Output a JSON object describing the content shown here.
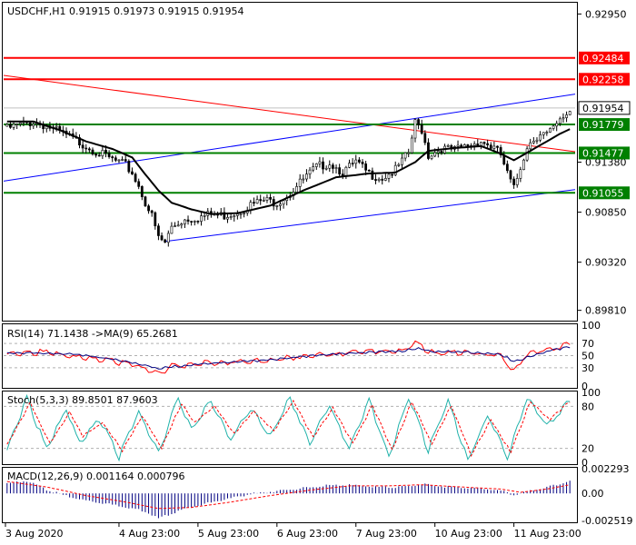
{
  "colors": {
    "background": "#ffffff",
    "frame": "#000000",
    "bull_candle": "#ffffff",
    "bear_candle": "#000000",
    "moving_average": "#000000",
    "channel_lines": "#0000ff",
    "trend_line": "#ff0000",
    "support_lines": "#008000",
    "resistance_lines": "#ff0000",
    "rsi_line": "#ff0000",
    "rsi_ma_line": "#000080",
    "stoch_main": "#20b2aa",
    "stoch_signal": "#ff0000",
    "macd_hist": "#000080",
    "macd_signal": "#ff0000",
    "level_tag_red_bg": "#ff0000",
    "level_tag_green_bg": "#008000"
  },
  "chart_data": [
    {
      "type": "candlestick",
      "title": "USDCHF,H1  0.91915  0.91973  0.91915  0.91954",
      "ylim": [
        0.8972,
        0.9305
      ],
      "y_ticks": [
        "0.92950",
        "0.91380",
        "0.90850",
        "0.90320",
        "0.89810"
      ],
      "y_tick_values": [
        0.9295,
        0.9138,
        0.9085,
        0.9032,
        0.8981
      ],
      "current_price": "0.91954",
      "current_price_value": 0.91954,
      "horizontal_levels": [
        {
          "label": "0.92484",
          "value": 0.92484,
          "color": "red"
        },
        {
          "label": "0.92258",
          "value": 0.92258,
          "color": "red"
        },
        {
          "label": "0.91779",
          "value": 0.91779,
          "color": "green"
        },
        {
          "label": "0.91477",
          "value": 0.91477,
          "color": "green"
        },
        {
          "label": "0.91055",
          "value": 0.91055,
          "color": "green"
        }
      ],
      "close_path": [
        [
          0,
          0.9176
        ],
        [
          4,
          0.918
        ],
        [
          8,
          0.9183
        ],
        [
          12,
          0.9179
        ],
        [
          16,
          0.9172
        ],
        [
          20,
          0.9165
        ],
        [
          24,
          0.9158
        ],
        [
          28,
          0.915
        ],
        [
          32,
          0.9143
        ],
        [
          36,
          0.9137
        ],
        [
          38,
          0.9129
        ],
        [
          40,
          0.9115
        ],
        [
          42,
          0.9098
        ],
        [
          44,
          0.9083
        ],
        [
          46,
          0.906
        ],
        [
          48,
          0.9055
        ],
        [
          50,
          0.9072
        ],
        [
          54,
          0.908
        ],
        [
          58,
          0.9082
        ],
        [
          62,
          0.9085
        ],
        [
          66,
          0.9084
        ],
        [
          70,
          0.9088
        ],
        [
          74,
          0.9095
        ],
        [
          78,
          0.91
        ],
        [
          82,
          0.9098
        ],
        [
          86,
          0.9108
        ],
        [
          90,
          0.9122
        ],
        [
          94,
          0.9135
        ],
        [
          98,
          0.914
        ],
        [
          102,
          0.913
        ],
        [
          106,
          0.914
        ],
        [
          110,
          0.9128
        ],
        [
          114,
          0.9124
        ],
        [
          118,
          0.9132
        ],
        [
          122,
          0.915
        ],
        [
          124,
          0.9182
        ],
        [
          126,
          0.9175
        ],
        [
          128,
          0.9148
        ],
        [
          132,
          0.9155
        ],
        [
          136,
          0.9153
        ],
        [
          140,
          0.9158
        ],
        [
          144,
          0.9163
        ],
        [
          148,
          0.9155
        ],
        [
          150,
          0.9148
        ],
        [
          152,
          0.9128
        ],
        [
          154,
          0.9112
        ],
        [
          156,
          0.9135
        ],
        [
          158,
          0.9158
        ],
        [
          160,
          0.9165
        ],
        [
          162,
          0.9172
        ],
        [
          164,
          0.917
        ],
        [
          166,
          0.9175
        ],
        [
          168,
          0.9183
        ],
        [
          170,
          0.9192
        ],
        [
          171,
          0.9195
        ]
      ],
      "moving_average_path": [
        [
          0,
          0.9181
        ],
        [
          8,
          0.9181
        ],
        [
          16,
          0.9172
        ],
        [
          24,
          0.916
        ],
        [
          32,
          0.9152
        ],
        [
          38,
          0.9143
        ],
        [
          42,
          0.9125
        ],
        [
          46,
          0.9108
        ],
        [
          50,
          0.9095
        ],
        [
          56,
          0.9088
        ],
        [
          62,
          0.9083
        ],
        [
          70,
          0.9084
        ],
        [
          80,
          0.9092
        ],
        [
          90,
          0.9108
        ],
        [
          100,
          0.9122
        ],
        [
          110,
          0.9126
        ],
        [
          118,
          0.9127
        ],
        [
          124,
          0.9138
        ],
        [
          128,
          0.915
        ],
        [
          136,
          0.9153
        ],
        [
          144,
          0.9155
        ],
        [
          150,
          0.9147
        ],
        [
          154,
          0.914
        ],
        [
          158,
          0.9148
        ],
        [
          164,
          0.916
        ],
        [
          168,
          0.9168
        ],
        [
          171,
          0.9173
        ]
      ]
    },
    {
      "type": "line",
      "title": "RSI(14) 71.1438  ->MA(9) 65.2681",
      "ylim": [
        0,
        100
      ],
      "y_ticks": [
        "100",
        "70",
        "50",
        "30",
        "0"
      ],
      "y_tick_values": [
        100,
        70,
        50,
        30,
        0
      ],
      "series": [
        {
          "name": "RSI(14)",
          "points": [
            [
              0,
              55
            ],
            [
              10,
              58
            ],
            [
              20,
              52
            ],
            [
              30,
              45
            ],
            [
              40,
              35
            ],
            [
              46,
              22
            ],
            [
              50,
              35
            ],
            [
              60,
              40
            ],
            [
              70,
              42
            ],
            [
              80,
              45
            ],
            [
              90,
              52
            ],
            [
              100,
              55
            ],
            [
              110,
              58
            ],
            [
              120,
              60
            ],
            [
              124,
              72
            ],
            [
              130,
              55
            ],
            [
              140,
              58
            ],
            [
              150,
              52
            ],
            [
              154,
              28
            ],
            [
              158,
              55
            ],
            [
              164,
              62
            ],
            [
              171,
              71
            ]
          ]
        },
        {
          "name": "MA(9)",
          "points": [
            [
              0,
              54
            ],
            [
              10,
              55
            ],
            [
              20,
              53
            ],
            [
              30,
              47
            ],
            [
              40,
              38
            ],
            [
              46,
              30
            ],
            [
              50,
              33
            ],
            [
              60,
              38
            ],
            [
              70,
              41
            ],
            [
              80,
              44
            ],
            [
              90,
              49
            ],
            [
              100,
              53
            ],
            [
              110,
              56
            ],
            [
              120,
              58
            ],
            [
              124,
              63
            ],
            [
              130,
              58
            ],
            [
              140,
              57
            ],
            [
              150,
              53
            ],
            [
              154,
              42
            ],
            [
              158,
              48
            ],
            [
              164,
              58
            ],
            [
              171,
              65
            ]
          ]
        }
      ]
    },
    {
      "type": "line",
      "title": "Stoch(5,3,3) 89.8501 87.9603",
      "ylim": [
        0,
        100
      ],
      "y_ticks": [
        "100",
        "80",
        "20",
        "0"
      ],
      "y_tick_values": [
        100,
        80,
        20,
        0
      ],
      "series": [
        {
          "name": "Stoch main",
          "points": [
            [
              0,
              20
            ],
            [
              6,
              95
            ],
            [
              12,
              20
            ],
            [
              18,
              80
            ],
            [
              22,
              30
            ],
            [
              28,
              65
            ],
            [
              34,
              10
            ],
            [
              40,
              75
            ],
            [
              46,
              15
            ],
            [
              52,
              95
            ],
            [
              56,
              50
            ],
            [
              62,
              90
            ],
            [
              68,
              35
            ],
            [
              74,
              80
            ],
            [
              80,
              40
            ],
            [
              86,
              95
            ],
            [
              92,
              30
            ],
            [
              98,
              85
            ],
            [
              104,
              20
            ],
            [
              110,
              90
            ],
            [
              116,
              10
            ],
            [
              122,
              95
            ],
            [
              128,
              20
            ],
            [
              134,
              90
            ],
            [
              140,
              5
            ],
            [
              146,
              70
            ],
            [
              152,
              10
            ],
            [
              158,
              95
            ],
            [
              164,
              55
            ],
            [
              171,
              90
            ]
          ]
        },
        {
          "name": "Stoch signal",
          "points": [
            [
              0,
              25
            ],
            [
              7,
              85
            ],
            [
              13,
              28
            ],
            [
              19,
              72
            ],
            [
              23,
              38
            ],
            [
              29,
              58
            ],
            [
              35,
              18
            ],
            [
              41,
              68
            ],
            [
              47,
              22
            ],
            [
              53,
              86
            ],
            [
              57,
              58
            ],
            [
              63,
              82
            ],
            [
              69,
              42
            ],
            [
              75,
              74
            ],
            [
              81,
              46
            ],
            [
              87,
              88
            ],
            [
              93,
              36
            ],
            [
              99,
              78
            ],
            [
              105,
              28
            ],
            [
              111,
              82
            ],
            [
              117,
              18
            ],
            [
              123,
              88
            ],
            [
              129,
              28
            ],
            [
              135,
              82
            ],
            [
              141,
              12
            ],
            [
              147,
              62
            ],
            [
              153,
              16
            ],
            [
              159,
              88
            ],
            [
              165,
              62
            ],
            [
              171,
              88
            ]
          ]
        }
      ]
    },
    {
      "type": "bar",
      "title": "MACD(12,26,9) 0.001164 0.000796",
      "ylim": [
        -0.00251,
        0.00229
      ],
      "y_ticks": [
        "0.002293",
        "0.00",
        "-0.002519"
      ],
      "y_tick_values": [
        0.002293,
        0.0,
        -0.002519
      ],
      "histogram": [
        [
          0,
          0.001
        ],
        [
          6,
          0.0012
        ],
        [
          12,
          0.0004
        ],
        [
          18,
          -0.0002
        ],
        [
          24,
          -0.0006
        ],
        [
          30,
          -0.0009
        ],
        [
          36,
          -0.0012
        ],
        [
          42,
          -0.0016
        ],
        [
          46,
          -0.0023
        ],
        [
          50,
          -0.0018
        ],
        [
          56,
          -0.0012
        ],
        [
          62,
          -0.0008
        ],
        [
          68,
          -0.0004
        ],
        [
          74,
          0.0
        ],
        [
          80,
          0.0002
        ],
        [
          86,
          0.0004
        ],
        [
          92,
          0.0006
        ],
        [
          98,
          0.0008
        ],
        [
          104,
          0.0008
        ],
        [
          110,
          0.0007
        ],
        [
          116,
          0.0006
        ],
        [
          122,
          0.0007
        ],
        [
          126,
          0.0009
        ],
        [
          132,
          0.0007
        ],
        [
          138,
          0.0006
        ],
        [
          144,
          0.0005
        ],
        [
          150,
          0.0003
        ],
        [
          154,
          -0.0001
        ],
        [
          158,
          0.0002
        ],
        [
          164,
          0.0006
        ],
        [
          171,
          0.0012
        ]
      ],
      "signal": [
        [
          0,
          0.0011
        ],
        [
          12,
          0.0006
        ],
        [
          24,
          -0.0002
        ],
        [
          36,
          -0.0008
        ],
        [
          46,
          -0.0014
        ],
        [
          56,
          -0.0013
        ],
        [
          68,
          -0.0008
        ],
        [
          80,
          -0.0002
        ],
        [
          92,
          0.0003
        ],
        [
          104,
          0.0007
        ],
        [
          116,
          0.0007
        ],
        [
          126,
          0.0008
        ],
        [
          138,
          0.0006
        ],
        [
          150,
          0.0004
        ],
        [
          156,
          0.0001
        ],
        [
          164,
          0.0004
        ],
        [
          171,
          0.0008
        ]
      ]
    }
  ],
  "x_axis": {
    "n_bars": 172,
    "labels": [
      "3 Aug 2020",
      "4 Aug 23:00",
      "5 Aug 23:00",
      "6 Aug 23:00",
      "7 Aug 23:00",
      "10 Aug 23:00",
      "11 Aug 23:00"
    ],
    "label_bars": [
      0,
      34,
      58,
      82,
      106,
      130,
      154
    ]
  }
}
